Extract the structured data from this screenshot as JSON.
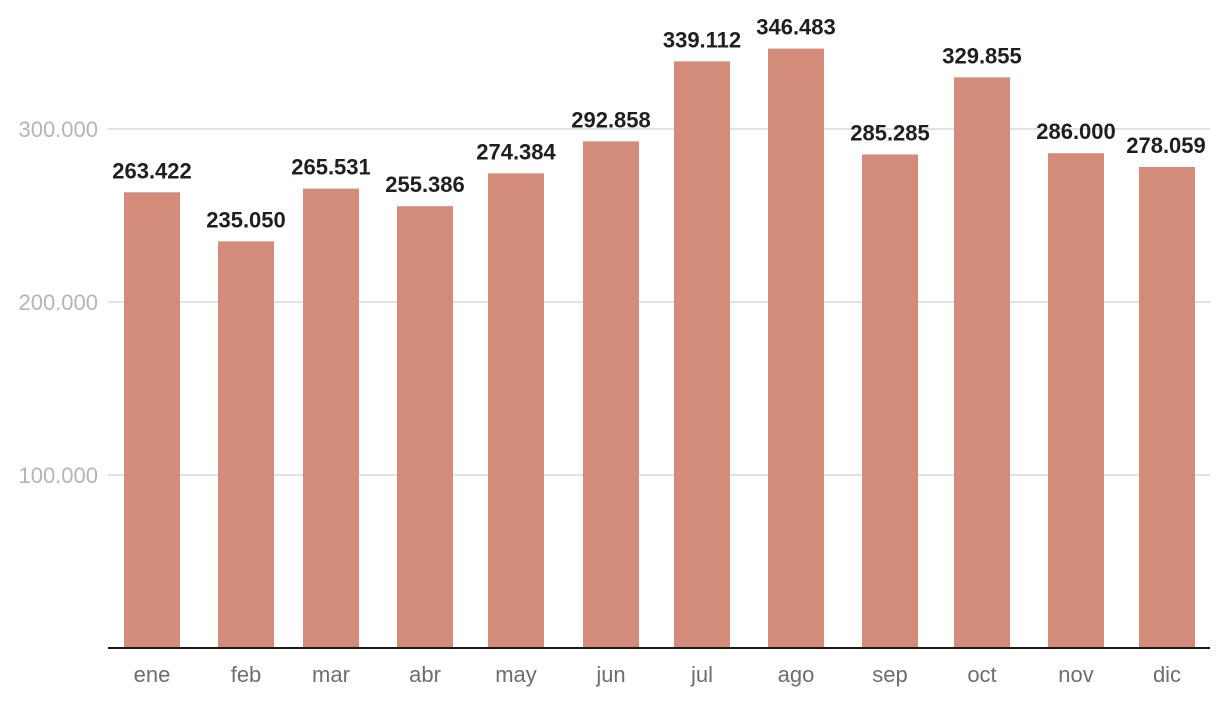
{
  "chart_data": {
    "type": "bar",
    "categories": [
      "ene",
      "feb",
      "mar",
      "abr",
      "may",
      "jun",
      "jul",
      "ago",
      "sep",
      "oct",
      "nov",
      "dic"
    ],
    "values": [
      263422,
      235050,
      265531,
      255386,
      274384,
      292858,
      339112,
      346483,
      285285,
      329855,
      286000,
      278059
    ],
    "value_labels": [
      "263.422",
      "235.050",
      "265.531",
      "255.386",
      "274.384",
      "292.858",
      "339.112",
      "346.483",
      "285.285",
      "329.855",
      "286.000",
      "278.059"
    ],
    "y_ticks": [
      100000,
      200000,
      300000
    ],
    "y_tick_labels": [
      "100.000",
      "200.000",
      "300.000"
    ],
    "ylim": [
      0,
      350000
    ],
    "grid": true,
    "title": "",
    "xlabel": "",
    "ylabel": "",
    "colors": {
      "bar": "#d38c7a",
      "gridline": "#e2e2e2",
      "baseline": "#1a1a1a",
      "y_tick_text": "#b5b5b5",
      "x_tick_text": "#6e6e6e",
      "data_label_text": "#1f1f1f"
    }
  }
}
